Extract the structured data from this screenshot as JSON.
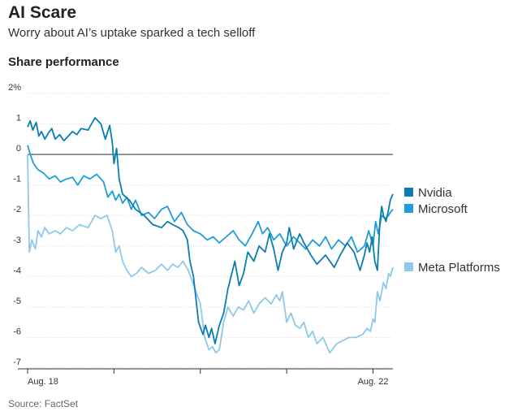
{
  "header": {
    "title": "AI Scare",
    "subtitle": "Worry about AI’s uptake sparked a tech selloff",
    "section_label": "Share performance"
  },
  "footer": {
    "source": "Source: FactSet"
  },
  "chart_data": {
    "type": "line",
    "title": "Share performance",
    "xlabel": "",
    "ylabel": "",
    "ylim": [
      -7,
      2
    ],
    "grid": true,
    "legend_position": "right",
    "y_ticks": [
      2,
      1,
      0,
      -1,
      -2,
      -3,
      -4,
      -5,
      -6,
      -7
    ],
    "y_tick_labels": [
      "2%",
      "1",
      "0",
      "-1",
      "-2",
      "-3",
      "-4",
      "-5",
      "-6",
      "-7"
    ],
    "x_ticks": [
      0,
      1,
      2,
      3,
      4
    ],
    "x_tick_labels": [
      "Aug. 18",
      "",
      "",
      "",
      "Aug. 22"
    ],
    "xlim": [
      0,
      4.23
    ],
    "series": [
      {
        "name": "Nvidia",
        "color": "#0a7eb0",
        "x": [
          0,
          0.03,
          0.06,
          0.1,
          0.13,
          0.16,
          0.2,
          0.24,
          0.28,
          0.32,
          0.37,
          0.42,
          0.47,
          0.52,
          0.57,
          0.62,
          0.7,
          0.78,
          0.85,
          0.9,
          0.95,
          0.98,
          1.0,
          1.03,
          1.06,
          1.1,
          1.18,
          1.25,
          1.35,
          1.45,
          1.55,
          1.62,
          1.68,
          1.75,
          1.8,
          1.85,
          1.88,
          1.92,
          1.98,
          2.03,
          2.06,
          2.1,
          2.13,
          2.17,
          2.22,
          2.27,
          2.32,
          2.4,
          2.45,
          2.5,
          2.55,
          2.62,
          2.68,
          2.75,
          2.8,
          2.85,
          2.9,
          2.95,
          3.0,
          3.03,
          3.08,
          3.15,
          3.2,
          3.28,
          3.35,
          3.45,
          3.55,
          3.62,
          3.7,
          3.78,
          3.85,
          3.9,
          3.93,
          3.96,
          3.99,
          4.02,
          4.05,
          4.08,
          4.1,
          4.12,
          4.15,
          4.18,
          4.2,
          4.23
        ],
        "values": [
          0.9,
          1.1,
          0.8,
          1.05,
          0.6,
          0.75,
          0.5,
          0.7,
          0.85,
          0.5,
          0.65,
          0.45,
          0.6,
          0.75,
          0.65,
          0.85,
          0.8,
          1.2,
          1.0,
          0.5,
          0.95,
          0.4,
          -0.3,
          0.2,
          -0.8,
          -1.3,
          -1.5,
          -1.8,
          -2.0,
          -2.3,
          -2.4,
          -2.2,
          -2.3,
          -2.4,
          -2.5,
          -2.8,
          -3.5,
          -4.0,
          -5.5,
          -5.9,
          -5.6,
          -6.0,
          -5.7,
          -6.2,
          -5.6,
          -5.2,
          -4.4,
          -3.5,
          -4.3,
          -3.9,
          -3.2,
          -3.5,
          -3.0,
          -3.2,
          -2.6,
          -3.1,
          -3.8,
          -3.2,
          -2.9,
          -2.4,
          -3.1,
          -2.6,
          -2.9,
          -3.3,
          -3.6,
          -3.3,
          -3.7,
          -3.3,
          -2.9,
          -3.2,
          -3.8,
          -3.3,
          -2.9,
          -3.2,
          -2.7,
          -3.5,
          -3.8,
          -2.2,
          -1.7,
          -2.0,
          -2.2,
          -1.8,
          -1.5,
          -1.3
        ]
      },
      {
        "name": "Microsoft",
        "color": "#1f9dd9",
        "x": [
          0,
          0.03,
          0.07,
          0.12,
          0.18,
          0.25,
          0.32,
          0.38,
          0.45,
          0.52,
          0.58,
          0.65,
          0.72,
          0.8,
          0.88,
          0.93,
          0.98,
          1.02,
          1.06,
          1.1,
          1.15,
          1.2,
          1.25,
          1.32,
          1.4,
          1.47,
          1.55,
          1.62,
          1.7,
          1.78,
          1.85,
          1.92,
          2.0,
          2.08,
          2.15,
          2.22,
          2.3,
          2.38,
          2.45,
          2.52,
          2.6,
          2.67,
          2.72,
          2.78,
          2.85,
          2.92,
          3.0,
          3.08,
          3.15,
          3.22,
          3.3,
          3.38,
          3.45,
          3.52,
          3.6,
          3.68,
          3.75,
          3.82,
          3.9,
          3.95,
          4.0,
          4.03,
          4.06,
          4.1,
          4.14,
          4.18,
          4.2,
          4.23
        ],
        "values": [
          0.3,
          0.0,
          -0.3,
          -0.5,
          -0.6,
          -0.8,
          -0.7,
          -0.9,
          -0.8,
          -0.75,
          -1.0,
          -0.7,
          -0.8,
          -0.65,
          -0.9,
          -1.4,
          -1.2,
          -1.5,
          -1.3,
          -1.6,
          -1.4,
          -1.8,
          -1.5,
          -2.0,
          -1.9,
          -2.1,
          -1.8,
          -1.7,
          -2.2,
          -1.9,
          -2.3,
          -2.5,
          -2.6,
          -2.8,
          -2.7,
          -2.9,
          -2.7,
          -2.5,
          -2.8,
          -3.0,
          -2.6,
          -2.2,
          -2.6,
          -2.4,
          -2.8,
          -2.6,
          -3.0,
          -2.7,
          -2.9,
          -3.1,
          -2.8,
          -3.0,
          -2.7,
          -3.1,
          -2.8,
          -3.0,
          -2.7,
          -3.2,
          -3.0,
          -2.5,
          -3.0,
          -2.2,
          -2.6,
          -2.0,
          -2.1,
          -2.0,
          -1.9,
          -1.8
        ]
      },
      {
        "name": "Meta Platforms",
        "color": "#8ec8ea",
        "x": [
          0,
          0.02,
          0.05,
          0.09,
          0.12,
          0.16,
          0.2,
          0.25,
          0.32,
          0.38,
          0.45,
          0.52,
          0.6,
          0.7,
          0.78,
          0.85,
          0.92,
          0.98,
          1.02,
          1.06,
          1.1,
          1.15,
          1.2,
          1.26,
          1.32,
          1.4,
          1.48,
          1.55,
          1.62,
          1.68,
          1.74,
          1.8,
          1.86,
          1.9,
          1.95,
          2.0,
          2.05,
          2.1,
          2.14,
          2.18,
          2.22,
          2.27,
          2.32,
          2.38,
          2.44,
          2.5,
          2.56,
          2.62,
          2.68,
          2.75,
          2.82,
          2.88,
          2.92,
          2.95,
          3.0,
          3.05,
          3.1,
          3.15,
          3.2,
          3.25,
          3.3,
          3.35,
          3.42,
          3.5,
          3.58,
          3.65,
          3.72,
          3.8,
          3.88,
          3.93,
          3.97,
          4.0,
          4.02,
          4.05,
          4.08,
          4.12,
          4.15,
          4.18,
          4.2,
          4.23
        ],
        "values": [
          0.0,
          -3.2,
          -2.8,
          -3.1,
          -2.5,
          -2.7,
          -2.4,
          -2.6,
          -2.5,
          -2.6,
          -2.4,
          -2.5,
          -2.3,
          -2.4,
          -2.0,
          -2.1,
          -2.0,
          -2.5,
          -3.2,
          -3.0,
          -3.5,
          -3.8,
          -4.0,
          -3.9,
          -3.7,
          -3.9,
          -3.8,
          -3.6,
          -3.8,
          -3.6,
          -3.7,
          -3.5,
          -3.8,
          -4.1,
          -4.5,
          -4.9,
          -6.0,
          -6.4,
          -6.3,
          -6.5,
          -6.4,
          -5.5,
          -5.0,
          -5.3,
          -5.0,
          -5.1,
          -4.8,
          -5.2,
          -4.9,
          -4.7,
          -4.9,
          -4.6,
          -4.8,
          -4.5,
          -5.5,
          -5.2,
          -5.6,
          -5.7,
          -5.5,
          -6.0,
          -5.8,
          -6.2,
          -6.0,
          -6.5,
          -6.2,
          -6.1,
          -6.0,
          -6.0,
          -5.9,
          -5.7,
          -5.8,
          -5.4,
          -5.5,
          -4.5,
          -4.8,
          -4.2,
          -4.4,
          -3.9,
          -4.0,
          -3.7
        ]
      }
    ]
  }
}
